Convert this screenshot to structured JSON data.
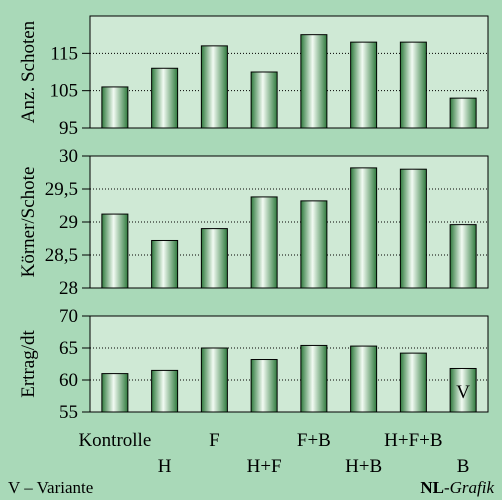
{
  "chart_data": [
    {
      "type": "bar",
      "ylabel": "Anz. Schoten",
      "ylim": [
        95,
        125
      ],
      "yticks": [
        95,
        105,
        115
      ],
      "values": [
        106,
        111,
        117,
        110,
        120,
        118,
        118,
        103
      ]
    },
    {
      "type": "bar",
      "ylabel": "Körner/Schote",
      "ylim": [
        28,
        30
      ],
      "yticks": [
        28,
        28.5,
        29,
        29.5,
        30
      ],
      "ytick_labels": [
        "28",
        "28,5",
        "29",
        "29,5",
        "30"
      ],
      "values": [
        29.12,
        28.72,
        28.9,
        29.38,
        29.32,
        29.82,
        29.8,
        28.96
      ]
    },
    {
      "type": "bar",
      "ylabel": "Ertrag/dt",
      "ylim": [
        55,
        70
      ],
      "yticks": [
        55,
        60,
        65,
        70
      ],
      "values": [
        61,
        61.5,
        65,
        63.2,
        65.4,
        65.3,
        64.2,
        61.8
      ],
      "annotation": {
        "index": 7,
        "text": "V"
      }
    }
  ],
  "categories": [
    "Kontrolle",
    "H",
    "F",
    "H+F",
    "F+B",
    "H+B",
    "H+F+B",
    "B"
  ],
  "footer": {
    "legend": "V – Variante",
    "credit_bold": "NL",
    "credit_italic": "-Grafik"
  },
  "colors": {
    "background": "#a9d9b8",
    "plot_background": "#cfe9d5",
    "bar_dark": "#2f7a3d",
    "bar_light": "#f2fbf3",
    "grid": "#000000"
  }
}
